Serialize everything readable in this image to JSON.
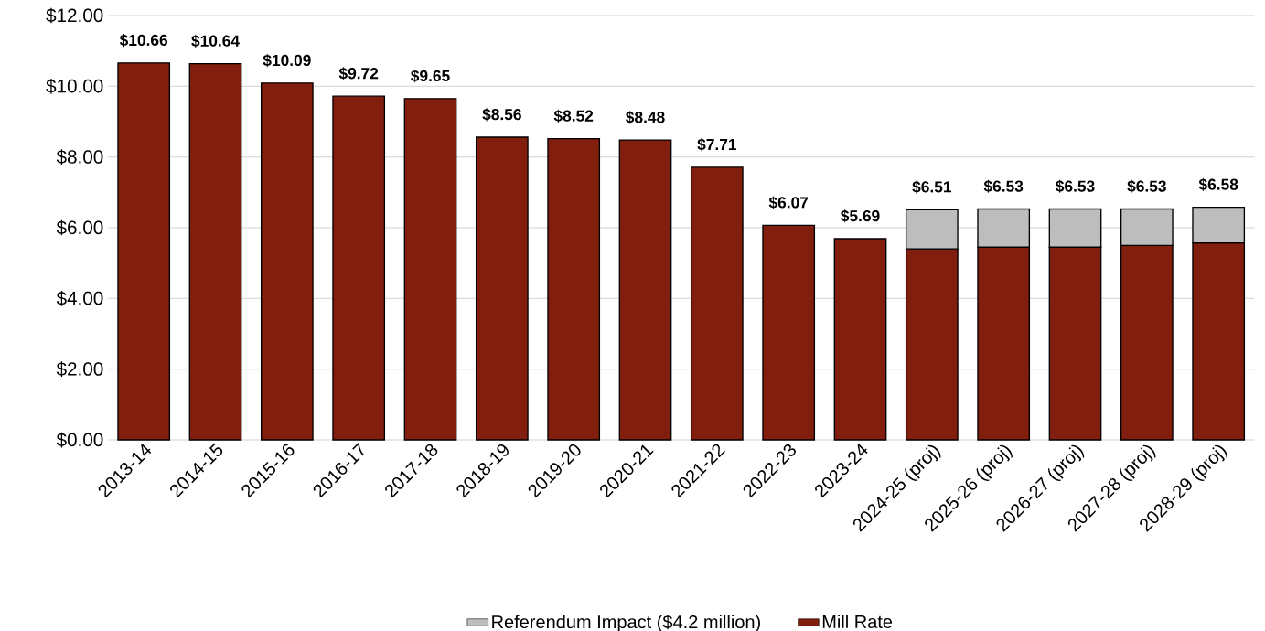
{
  "chart_data": {
    "type": "bar",
    "stacked": true,
    "categories": [
      "2013-14",
      "2014-15",
      "2015-16",
      "2016-17",
      "2017-18",
      "2018-19",
      "2019-20",
      "2020-21",
      "2021-22",
      "2022-23",
      "2023-24",
      "2024-25 (proj)",
      "2025-26 (proj)",
      "2026-27 (proj)",
      "2027-28 (proj)",
      "2028-29 (proj)"
    ],
    "series": [
      {
        "name": "Mill Rate",
        "color": "#821e0e",
        "values": [
          10.66,
          10.64,
          10.09,
          9.72,
          9.65,
          8.56,
          8.52,
          8.48,
          7.71,
          6.07,
          5.69,
          5.4,
          5.45,
          5.45,
          5.5,
          5.57
        ]
      },
      {
        "name": "Referendum Impact ($4.2 million)",
        "color": "#bdbdbd",
        "values": [
          null,
          null,
          null,
          null,
          null,
          null,
          null,
          null,
          null,
          null,
          null,
          1.11,
          1.08,
          1.08,
          1.03,
          1.01
        ]
      }
    ],
    "totals": [
      "$10.66",
      "$10.64",
      "$10.09",
      "$9.72",
      "$9.65",
      "$8.56",
      "$8.52",
      "$8.48",
      "$7.71",
      "$6.07",
      "$5.69",
      "$6.51",
      "$6.53",
      "$6.53",
      "$6.53",
      "$6.58"
    ],
    "ylim": [
      0,
      12
    ],
    "yticks": [
      {
        "value": 0,
        "label": "$0.00"
      },
      {
        "value": 2,
        "label": "$2.00"
      },
      {
        "value": 4,
        "label": "$4.00"
      },
      {
        "value": 6,
        "label": "$6.00"
      },
      {
        "value": 8,
        "label": "$8.00"
      },
      {
        "value": 10,
        "label": "$10.00"
      },
      {
        "value": 12,
        "label": "$12.00"
      }
    ],
    "grid": "y",
    "legend": "bottom"
  }
}
